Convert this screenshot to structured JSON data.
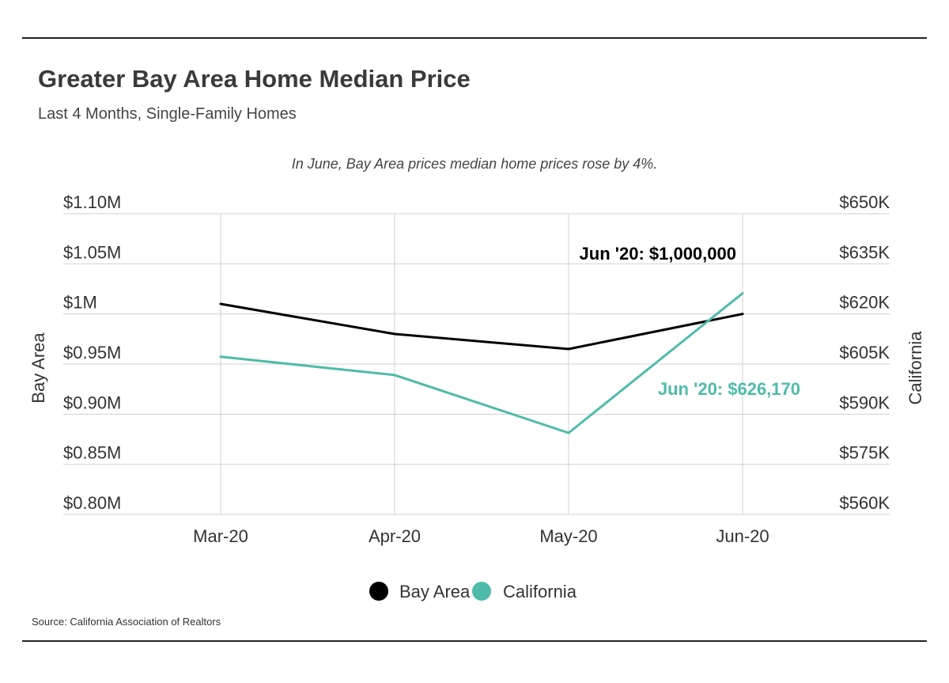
{
  "title": "Greater Bay Area Home Median Price",
  "subtitle": "Last 4 Months, Single-Family Homes",
  "note": "In June, Bay Area prices median home prices rose by 4%.",
  "source": "Source:  California Association of Realtors",
  "chart_data": {
    "type": "line",
    "categories": [
      "Mar-20",
      "Apr-20",
      "May-20",
      "Jun-20"
    ],
    "series": [
      {
        "name": "Bay Area",
        "axis": "left",
        "color": "#000000",
        "values": [
          1010000,
          980000,
          965000,
          1000000
        ]
      },
      {
        "name": "California",
        "axis": "right",
        "color": "#4fbbaa",
        "values": [
          607200,
          601700,
          584400,
          626170
        ]
      }
    ],
    "ylabel_left": "Bay Area",
    "ylabel_right": "California",
    "ylim_left": [
      800000,
      1100000
    ],
    "ylim_right": [
      560000,
      650000
    ],
    "yticks_left": [
      {
        "value": 800000,
        "label": "$0.80M"
      },
      {
        "value": 850000,
        "label": "$0.85M"
      },
      {
        "value": 900000,
        "label": "$0.90M"
      },
      {
        "value": 950000,
        "label": "$0.95M"
      },
      {
        "value": 1000000,
        "label": "$1M"
      },
      {
        "value": 1050000,
        "label": "$1.05M"
      },
      {
        "value": 1100000,
        "label": "$1.10M"
      }
    ],
    "yticks_right": [
      {
        "value": 560000,
        "label": "$560K"
      },
      {
        "value": 575000,
        "label": "$575K"
      },
      {
        "value": 590000,
        "label": "$590K"
      },
      {
        "value": 605000,
        "label": "$605K"
      },
      {
        "value": 620000,
        "label": "$620K"
      },
      {
        "value": 635000,
        "label": "$635K"
      },
      {
        "value": 650000,
        "label": "$650K"
      }
    ],
    "annotations": [
      {
        "series": "Bay Area",
        "text": "Jun '20: $1,000,000"
      },
      {
        "series": "California",
        "text": "Jun '20: $626,170"
      }
    ],
    "grid": true,
    "legend": "bottom"
  }
}
